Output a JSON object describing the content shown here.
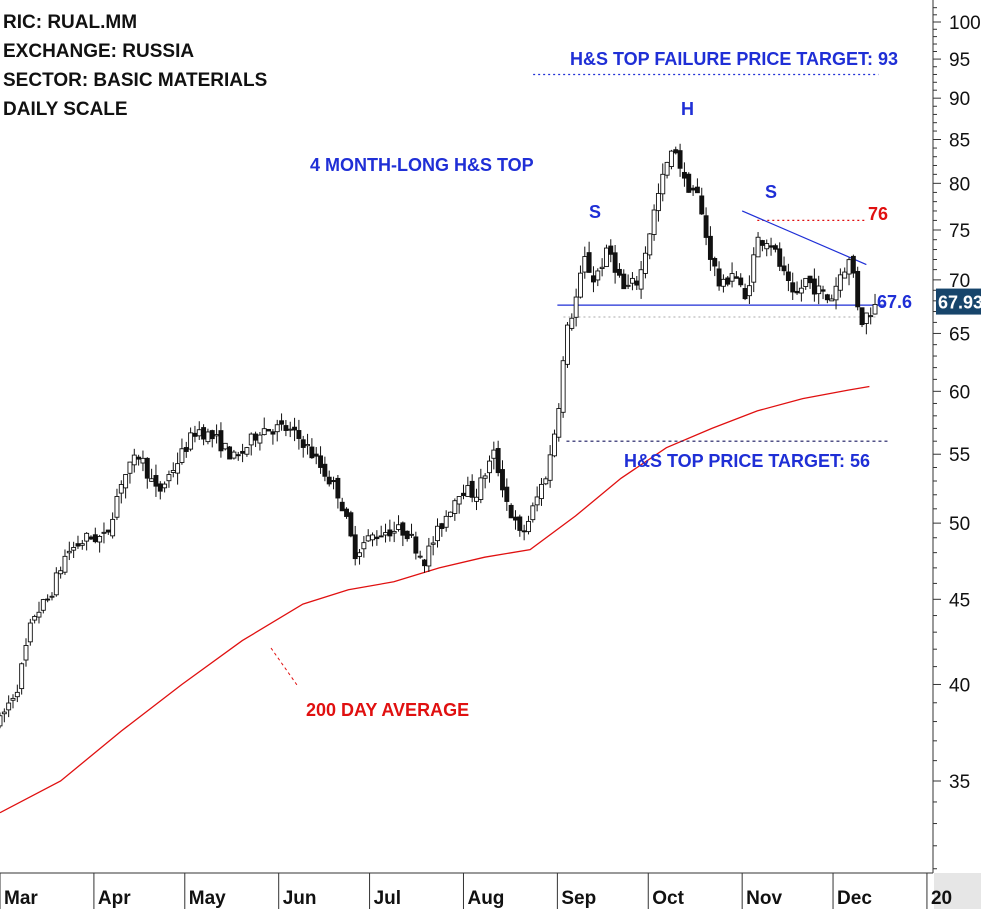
{
  "info": {
    "ric": "RIC: RUAL.MM",
    "exchange": "EXCHANGE: RUSSIA",
    "sector": "SECTOR: BASIC MATERIALS",
    "scale": "DAILY SCALE"
  },
  "annotations": {
    "pattern_title": "4 MONTH-LONG H&S TOP",
    "failure_target": "H&S TOP FAILURE PRICE TARGET: 93",
    "price_target": "H&S TOP PRICE TARGET: 56",
    "ma_label": "200 DAY AVERAGE",
    "left_shoulder": "S",
    "head": "H",
    "right_shoulder": "S",
    "neckline_value": "67.6",
    "upper_level": "76",
    "last_price": "67.93"
  },
  "colors": {
    "candles": "#111111",
    "moving_average": "#e01010",
    "neckline": "#1f2fd6",
    "price_badge": "#17456b"
  },
  "chart_data": {
    "type": "candlestick",
    "y_scale": "log",
    "ylim": [
      30,
      105
    ],
    "y_ticks": [
      35,
      40,
      45,
      50,
      55,
      60,
      65,
      70,
      75,
      80,
      85,
      90,
      95,
      100
    ],
    "x_labels": [
      "Mar",
      "Apr",
      "May",
      "Jun",
      "Jul",
      "Aug",
      "Sep",
      "Oct",
      "Nov",
      "Dec",
      "20"
    ],
    "x_range_days": [
      0,
      308
    ],
    "x_label_days": [
      0,
      31,
      61,
      92,
      122,
      153,
      184,
      214,
      245,
      275,
      306
    ],
    "price_path": [
      [
        0,
        38
      ],
      [
        6,
        40
      ],
      [
        11,
        44
      ],
      [
        16,
        45
      ],
      [
        22,
        48
      ],
      [
        29,
        49
      ],
      [
        35,
        49
      ],
      [
        40,
        53
      ],
      [
        46,
        55
      ],
      [
        52,
        52
      ],
      [
        60,
        55
      ],
      [
        65,
        57
      ],
      [
        72,
        56
      ],
      [
        78,
        54.5
      ],
      [
        86,
        57
      ],
      [
        94,
        57
      ],
      [
        100,
        56
      ],
      [
        106,
        54
      ],
      [
        112,
        52
      ],
      [
        117,
        48
      ],
      [
        122,
        49
      ],
      [
        128,
        49.5
      ],
      [
        134,
        49.5
      ],
      [
        140,
        47.5
      ],
      [
        146,
        50
      ],
      [
        152,
        52.5
      ],
      [
        157,
        52
      ],
      [
        163,
        55
      ],
      [
        168,
        51
      ],
      [
        172,
        49
      ],
      [
        176,
        51
      ],
      [
        181,
        54
      ],
      [
        184,
        58
      ],
      [
        187,
        65
      ],
      [
        190,
        68
      ],
      [
        193,
        72
      ],
      [
        196,
        70
      ],
      [
        201,
        73
      ],
      [
        206,
        69
      ],
      [
        211,
        70
      ],
      [
        216,
        77
      ],
      [
        220,
        82
      ],
      [
        223,
        84
      ],
      [
        226,
        80
      ],
      [
        230,
        79
      ],
      [
        234,
        73
      ],
      [
        238,
        69
      ],
      [
        242,
        71
      ],
      [
        246,
        68
      ],
      [
        250,
        74
      ],
      [
        254,
        74
      ],
      [
        258,
        71
      ],
      [
        262,
        68
      ],
      [
        266,
        70
      ],
      [
        270,
        69
      ],
      [
        274,
        68
      ],
      [
        278,
        71
      ],
      [
        281,
        72
      ],
      [
        284,
        66
      ],
      [
        287,
        67
      ],
      [
        290,
        67.9
      ]
    ],
    "moving_average_200": [
      [
        0,
        33.5
      ],
      [
        20,
        35
      ],
      [
        40,
        37.5
      ],
      [
        60,
        40
      ],
      [
        80,
        42.5
      ],
      [
        100,
        44.7
      ],
      [
        115,
        45.6
      ],
      [
        130,
        46.1
      ],
      [
        145,
        47.0
      ],
      [
        160,
        47.7
      ],
      [
        175,
        48.2
      ],
      [
        190,
        50.5
      ],
      [
        205,
        53.2
      ],
      [
        220,
        55.5
      ],
      [
        235,
        57
      ],
      [
        250,
        58.4
      ],
      [
        265,
        59.4
      ],
      [
        280,
        60.1
      ],
      [
        287,
        60.4
      ]
    ],
    "levels": {
      "neckline": 67.6,
      "resistance": 76,
      "support_dashed": 66.5,
      "failure_target": 93,
      "price_target": 56
    },
    "right_shoulder_trendline": [
      [
        245,
        77
      ],
      [
        286,
        71.5
      ]
    ],
    "last_close": 67.93
  }
}
